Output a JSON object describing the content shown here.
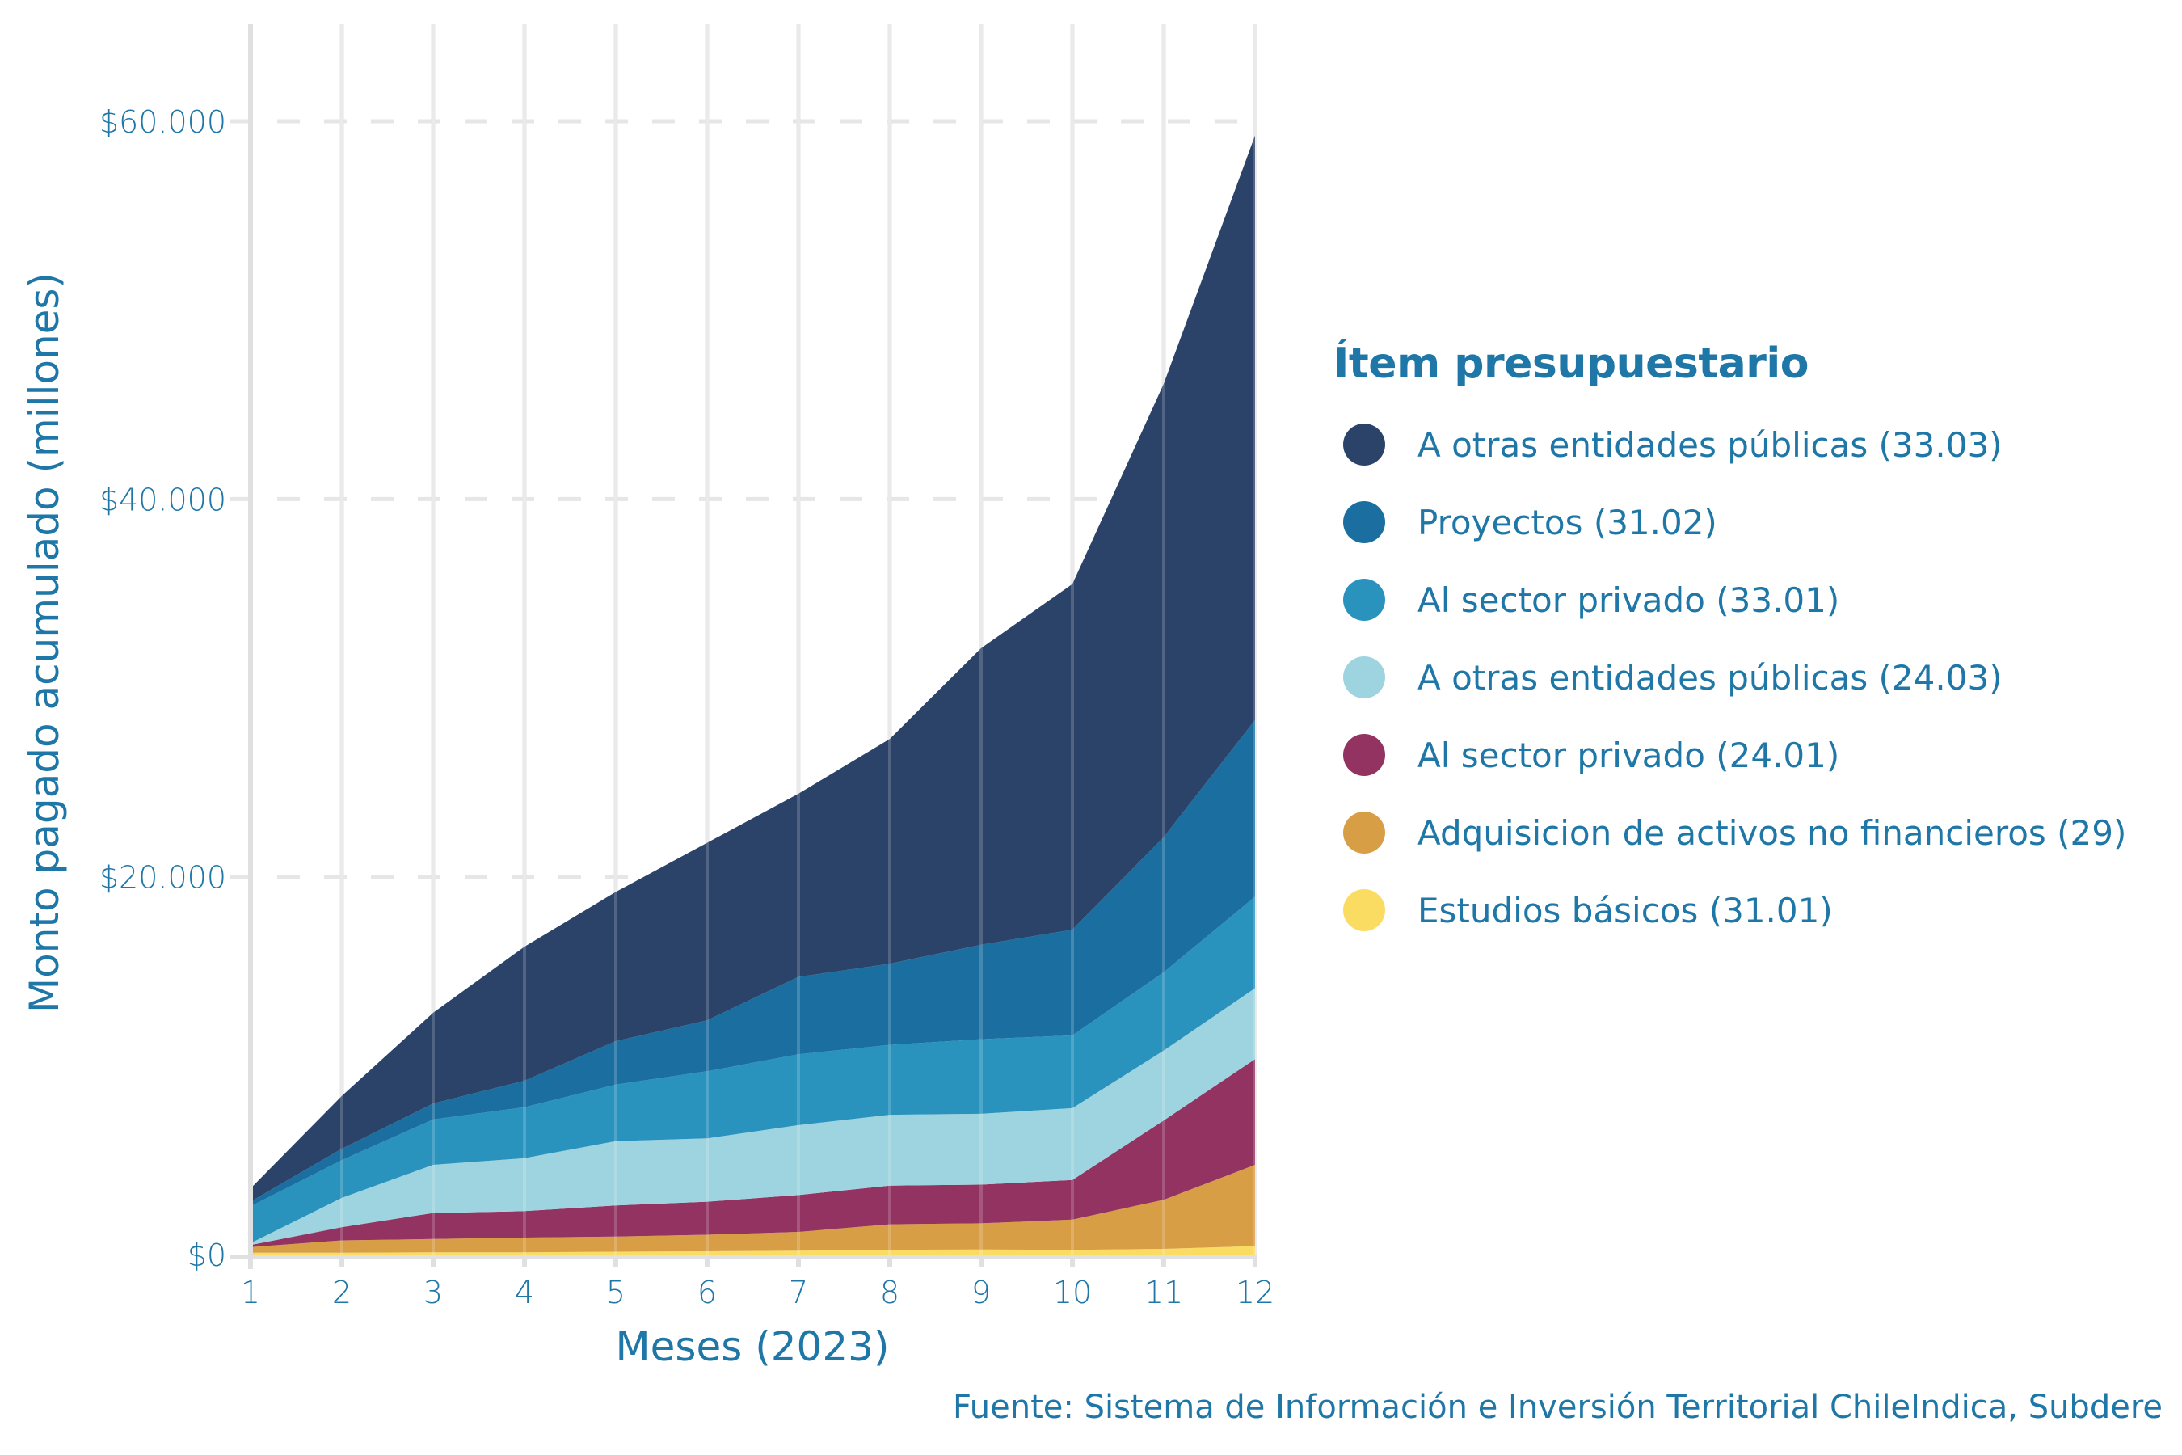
{
  "chart_data": {
    "type": "area",
    "stacked": true,
    "title": "",
    "xlabel": "Meses (2023)",
    "ylabel": "Monto pagado acumulado (millones)",
    "x": [
      1,
      2,
      3,
      4,
      5,
      6,
      7,
      8,
      9,
      10,
      11,
      12
    ],
    "x_tick_labels": [
      "1",
      "2",
      "3",
      "4",
      "5",
      "6",
      "7",
      "8",
      "9",
      "10",
      "11",
      "12"
    ],
    "y_ticks": [
      0,
      20000,
      40000,
      60000
    ],
    "y_tick_labels": [
      "$0",
      "$20.000",
      "$40.000",
      "$60.000"
    ],
    "xlim": [
      1,
      12
    ],
    "ylim": [
      0,
      65000
    ],
    "grid": true,
    "legend_position": "right",
    "legend_title": "Ítem presupuestario",
    "stack_order_bottom_to_top": [
      "Estudios básicos (31.01)",
      "Adquisicion de activos no financieros (29)",
      "Al sector privado (24.01)",
      "A otras entidades públicas (24.03)",
      "Al sector privado (33.01)",
      "Proyectos (31.02)",
      "A otras entidades públicas (33.03)"
    ],
    "series": [
      {
        "name": "A otras entidades públicas (33.03)",
        "color": "#2b4368",
        "values": [
          700,
          2800,
          4800,
          7100,
          7900,
          9400,
          9700,
          11900,
          15700,
          18300,
          24000,
          30950
        ]
      },
      {
        "name": "Proyectos (31.02)",
        "color": "#1a6fa0",
        "values": [
          250,
          600,
          850,
          1400,
          2300,
          2700,
          4100,
          4300,
          5000,
          5600,
          7150,
          9350
        ]
      },
      {
        "name": "Al sector privado (33.01)",
        "color": "#2a93bd",
        "values": [
          1950,
          2000,
          2400,
          2700,
          3000,
          3550,
          3750,
          3700,
          3950,
          3850,
          4150,
          4850
        ]
      },
      {
        "name": "A otras entidades públicas (24.03)",
        "color": "#9dd4df",
        "values": [
          100,
          1550,
          2550,
          2800,
          3400,
          3350,
          3700,
          3750,
          3750,
          3800,
          3700,
          3750
        ]
      },
      {
        "name": "Al sector privado (24.01)",
        "color": "#933361",
        "values": [
          100,
          700,
          1380,
          1400,
          1650,
          1750,
          1950,
          2050,
          2050,
          2100,
          4200,
          5600
        ]
      },
      {
        "name": "Adquisicion de activos no financieros (29)",
        "color": "#d89e46",
        "values": [
          300,
          650,
          700,
          780,
          800,
          880,
          1000,
          1350,
          1380,
          1600,
          2600,
          4300
        ]
      },
      {
        "name": "Estudios básicos (31.01)",
        "color": "#fbdc62",
        "values": [
          100,
          100,
          120,
          120,
          150,
          170,
          200,
          250,
          270,
          250,
          300,
          450
        ]
      }
    ],
    "source": "Fuente: Sistema de Información e Inversión Territorial ChileIndica, Subdere"
  },
  "legend": {
    "title": "Ítem presupuestario",
    "items": [
      {
        "label": "A otras entidades públicas (33.03)",
        "color": "#2b4368"
      },
      {
        "label": "Proyectos (31.02)",
        "color": "#1a6fa0"
      },
      {
        "label": "Al sector privado (33.01)",
        "color": "#2a93bd"
      },
      {
        "label": "A otras entidades públicas (24.03)",
        "color": "#9dd4df"
      },
      {
        "label": "Al sector privado (24.01)",
        "color": "#933361"
      },
      {
        "label": "Adquisicion de activos no financieros (29)",
        "color": "#d89e46"
      },
      {
        "label": "Estudios básicos (31.01)",
        "color": "#fbdc62"
      }
    ]
  },
  "caption": "Fuente: Sistema de Información e Inversión Territorial ChileIndica, Subdere",
  "colors": {
    "text": "#1f77a8",
    "grid": "#e6e6e6"
  }
}
